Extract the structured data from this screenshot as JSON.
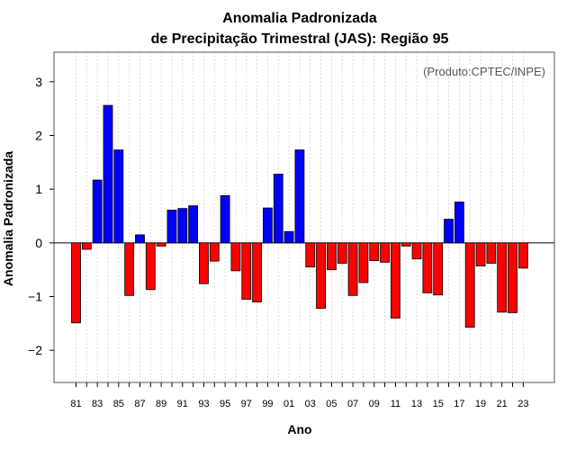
{
  "chart_data": {
    "type": "bar",
    "title_line1": "Anomalia Padronizada",
    "title_line2": "de Precipitação Trimestral (JAS): Região 95",
    "xlabel": "Ano",
    "ylabel": "Anomalia Padronizada",
    "credit": "(Produto:CPTEC/INPE)",
    "ylim": [
      -2.6,
      3.55
    ],
    "yticks": [
      -2,
      -1,
      0,
      1,
      2,
      3
    ],
    "ytick_labels": [
      "−2",
      "−1",
      "0",
      "1",
      "2",
      "3"
    ],
    "categories": [
      "81",
      "82",
      "83",
      "84",
      "85",
      "86",
      "87",
      "88",
      "89",
      "90",
      "91",
      "92",
      "93",
      "94",
      "95",
      "96",
      "97",
      "98",
      "99",
      "00",
      "01",
      "02",
      "03",
      "04",
      "05",
      "06",
      "07",
      "08",
      "09",
      "10",
      "11",
      "12",
      "13",
      "14",
      "15",
      "16",
      "17",
      "18",
      "19",
      "20",
      "21",
      "22",
      "23"
    ],
    "xtick_labels": [
      "81",
      "83",
      "85",
      "87",
      "89",
      "91",
      "93",
      "95",
      "97",
      "99",
      "01",
      "03",
      "05",
      "07",
      "09",
      "11",
      "13",
      "15",
      "17",
      "19",
      "21",
      "23"
    ],
    "values": [
      -1.49,
      -0.12,
      1.17,
      2.56,
      1.73,
      -0.98,
      0.15,
      -0.87,
      -0.06,
      0.61,
      0.64,
      0.69,
      -0.76,
      -0.34,
      0.88,
      -0.52,
      -1.05,
      -1.1,
      0.65,
      1.28,
      0.21,
      1.73,
      -0.45,
      -1.22,
      -0.5,
      -0.38,
      -0.98,
      -0.74,
      -0.33,
      -0.36,
      -1.4,
      -0.06,
      -0.3,
      -0.93,
      -0.97,
      0.44,
      0.76,
      -1.57,
      -0.43,
      -0.38,
      -1.29,
      -1.3,
      -0.47
    ],
    "colors": {
      "positive": "#0000ff",
      "negative": "#ff0000",
      "grid": "#d3d3d3",
      "frame": "#555555"
    }
  }
}
